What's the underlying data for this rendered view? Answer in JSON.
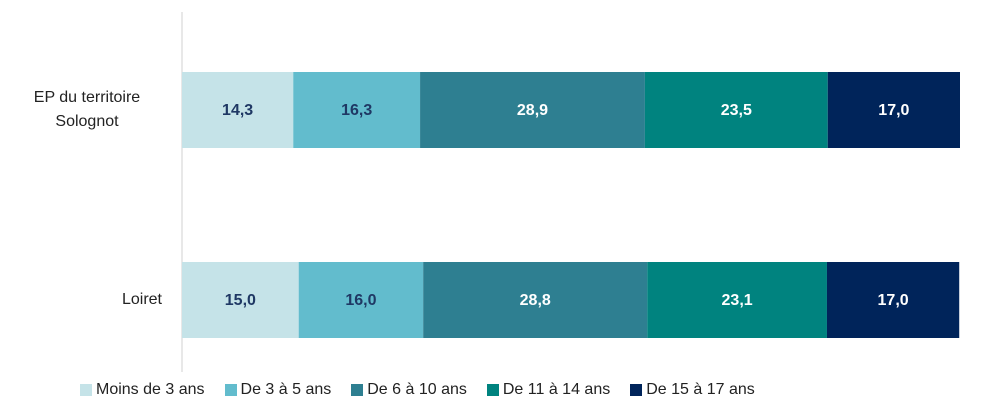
{
  "chart_data": {
    "type": "stacked-barh",
    "categories": [
      "EP du territoire Solognot",
      "Loiret"
    ],
    "xlim": [
      0,
      100
    ],
    "series": [
      {
        "name": "Moins de 3 ans",
        "color": "#c5e3e8",
        "values": [
          14.3,
          15.0
        ],
        "value_labels": [
          "14,3",
          "15,0"
        ]
      },
      {
        "name": "De 3 à 5 ans",
        "color": "#62bccd",
        "values": [
          16.3,
          16.0
        ],
        "value_labels": [
          "16,3",
          "16,0"
        ]
      },
      {
        "name": "De 6 à 10 ans",
        "color": "#2e7f91",
        "values": [
          28.9,
          28.8
        ],
        "value_labels": [
          "28,9",
          "28,8"
        ]
      },
      {
        "name": "De 11 à 14 ans",
        "color": "#00837f",
        "values": [
          23.5,
          23.1
        ],
        "value_labels": [
          "23,5",
          "23,1"
        ]
      },
      {
        "name": "De 15 à 17 ans",
        "color": "#00245a",
        "values": [
          17.0,
          17.0
        ],
        "value_labels": [
          "17,0",
          "17,0"
        ]
      }
    ]
  }
}
